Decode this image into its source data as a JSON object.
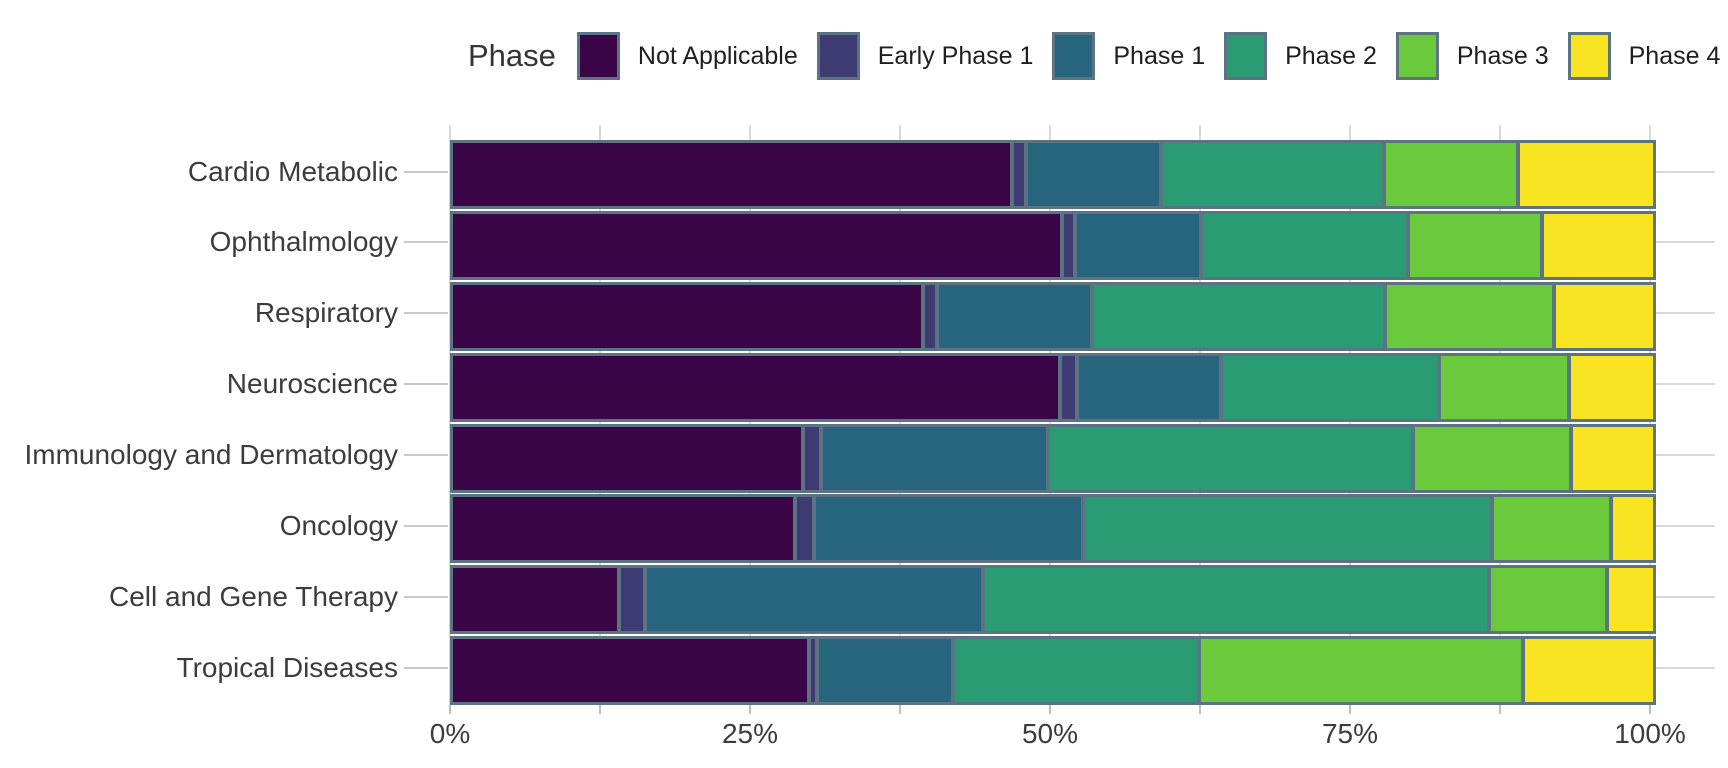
{
  "legend": {
    "title": "Phase",
    "items": [
      {
        "label": "Not Applicable",
        "color": "#3a0647"
      },
      {
        "label": "Early Phase 1",
        "color": "#3d3b72"
      },
      {
        "label": "Phase 1",
        "color": "#27657e"
      },
      {
        "label": "Phase 2",
        "color": "#2a9c74"
      },
      {
        "label": "Phase 3",
        "color": "#6aca3c"
      },
      {
        "label": "Phase 4",
        "color": "#f8e420"
      }
    ]
  },
  "chart_data": {
    "type": "bar",
    "orientation": "horizontal",
    "stacked": true,
    "unit": "percent",
    "title": "",
    "xlabel": "",
    "ylabel": "",
    "xlim": [
      0,
      100
    ],
    "x_ticks": [
      "0%",
      "25%",
      "50%",
      "75%",
      "100%"
    ],
    "x_tick_values": [
      0,
      25,
      50,
      75,
      100
    ],
    "x_minor_tick_step": 12.5,
    "grid": true,
    "legend_position": "top",
    "categories": [
      "Cardio Metabolic",
      "Ophthalmology",
      "Respiratory",
      "Neuroscience",
      "Immunology and Dermatology",
      "Oncology",
      "Cell and Gene Therapy",
      "Tropical Diseases"
    ],
    "series": [
      {
        "name": "Not Applicable",
        "color": "#3a0647",
        "values": [
          46.4,
          50.6,
          39.0,
          50.4,
          29.0,
          28.3,
          13.7,
          29.5
        ]
      },
      {
        "name": "Early Phase 1",
        "color": "#3d3b72",
        "values": [
          1.2,
          1.1,
          1.2,
          1.4,
          1.5,
          1.6,
          2.1,
          0.7
        ]
      },
      {
        "name": "Phase 1",
        "color": "#27657e",
        "values": [
          11.2,
          10.5,
          12.9,
          12.0,
          18.9,
          22.4,
          28.2,
          11.3
        ]
      },
      {
        "name": "Phase 2",
        "color": "#2a9c74",
        "values": [
          18.6,
          17.2,
          24.4,
          18.2,
          30.4,
          34.1,
          42.2,
          20.5
        ]
      },
      {
        "name": "Phase 3",
        "color": "#6aca3c",
        "values": [
          11.2,
          11.2,
          14.1,
          10.8,
          13.2,
          9.9,
          9.8,
          27.0
        ]
      },
      {
        "name": "Phase 4",
        "color": "#f8e420",
        "values": [
          11.4,
          9.4,
          8.4,
          7.2,
          7.0,
          3.7,
          4.0,
          11.0
        ]
      }
    ],
    "colors": {
      "segment_border": "#5b7382",
      "gridline": "#d9d9d9",
      "tick": "#bdbdbd",
      "axis_text": "#3c3c3c"
    }
  }
}
